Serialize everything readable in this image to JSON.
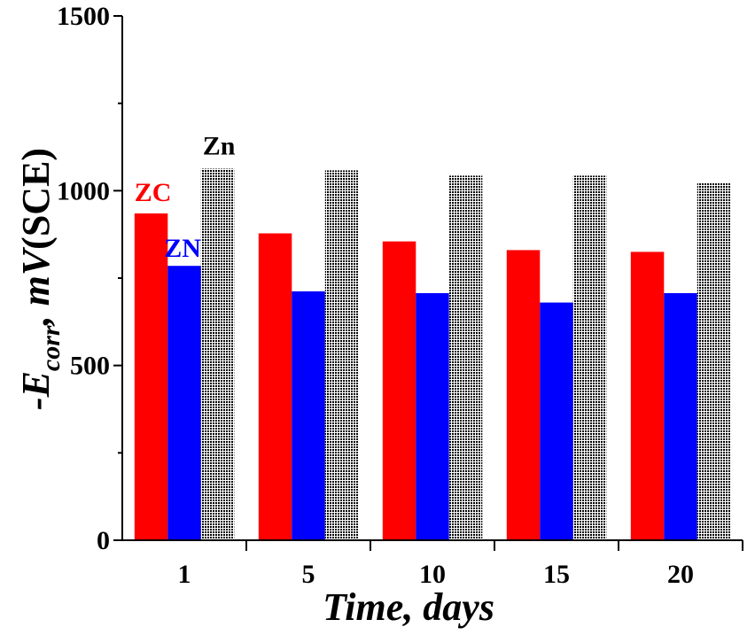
{
  "chart_data": {
    "type": "bar",
    "categories": [
      "1",
      "5",
      "10",
      "15",
      "20"
    ],
    "series": [
      {
        "name": "ZC",
        "color": "#ff0000",
        "pattern": "solid",
        "values": [
          935,
          878,
          855,
          830,
          825
        ]
      },
      {
        "name": "ZN",
        "color": "#0000ff",
        "pattern": "solid",
        "values": [
          785,
          712,
          707,
          680,
          707
        ]
      },
      {
        "name": "Zn",
        "color": "#000000",
        "pattern": "hatched",
        "values": [
          1063,
          1058,
          1043,
          1043,
          1022
        ]
      }
    ],
    "series_labels": [
      {
        "text": "ZC",
        "color": "#ff0000"
      },
      {
        "text": "ZN",
        "color": "#0000ff"
      },
      {
        "text": "Zn",
        "color": "#000000"
      }
    ],
    "xlabel": "Time, days",
    "ylabel": {
      "prefix": "-E",
      "subscript": "corr",
      "suffix_italic": ", mV",
      "suffix_plain": "(SCE)"
    },
    "ylim": [
      0,
      1500
    ],
    "yticks": [
      0,
      500,
      1000,
      1500
    ],
    "grid": false,
    "legend": "inline-above-first-group"
  }
}
